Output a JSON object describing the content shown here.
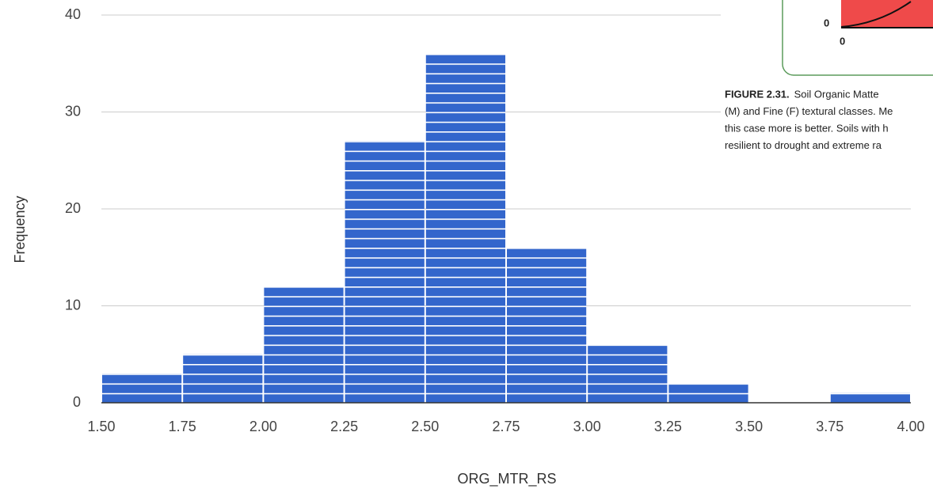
{
  "chart_data": {
    "type": "histogram",
    "x_label": "ORG_MTR_RS",
    "y_label": "Frequency",
    "bins": [
      1.5,
      1.75,
      2.0,
      2.25,
      2.5,
      2.75,
      3.0,
      3.25,
      3.5,
      3.75,
      4.0
    ],
    "values": [
      3,
      5,
      12,
      27,
      36,
      16,
      6,
      2,
      0,
      1
    ],
    "color": "#3366cc",
    "xlim": [
      1.5,
      4.0
    ],
    "xticks": [
      {
        "value": 1.5,
        "label": "1.50"
      },
      {
        "value": 1.75,
        "label": "1.75"
      },
      {
        "value": 2.0,
        "label": "2.00"
      },
      {
        "value": 2.25,
        "label": "2.25"
      },
      {
        "value": 2.5,
        "label": "2.50"
      },
      {
        "value": 2.75,
        "label": "2.75"
      },
      {
        "value": 3.0,
        "label": "3.00"
      },
      {
        "value": 3.25,
        "label": "3.25"
      },
      {
        "value": 3.5,
        "label": "3.50"
      },
      {
        "value": 3.75,
        "label": "3.75"
      },
      {
        "value": 4.0,
        "label": "4.00"
      }
    ],
    "ylim": [
      0,
      40
    ],
    "yticks": [
      0,
      10,
      20,
      30,
      40
    ],
    "grid": true
  },
  "overlay": {
    "axis_labels": [
      "0",
      "0"
    ],
    "figure_label": "FIGURE 2.31.",
    "caption_lines": [
      "Soil Organic Matte",
      "(M) and Fine (F) textural classes. Me",
      "this case more is better. Soils with h",
      "resilient to drought and extreme ra"
    ]
  }
}
